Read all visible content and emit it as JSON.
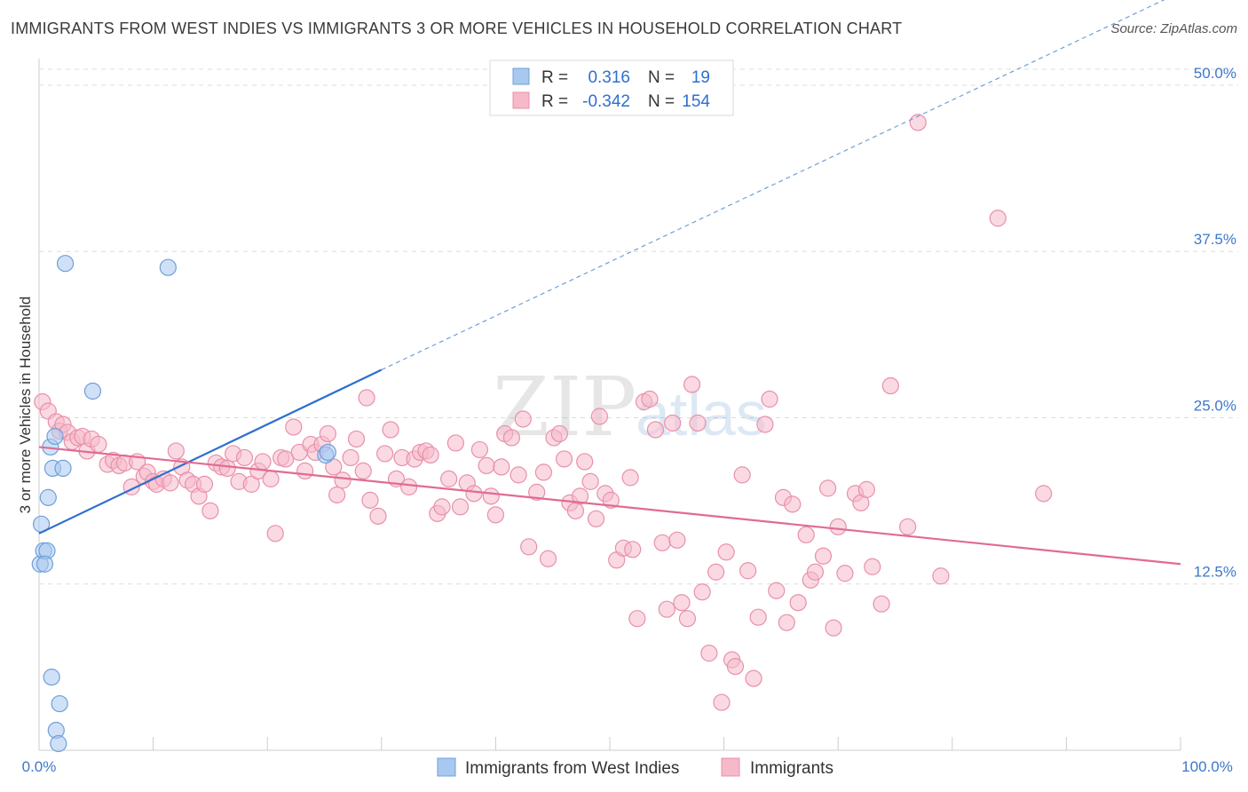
{
  "title": "IMMIGRANTS FROM WEST INDIES VS IMMIGRANTS 3 OR MORE VEHICLES IN HOUSEHOLD CORRELATION CHART",
  "source": "Source: ZipAtlas.com",
  "watermark": {
    "zip": "ZIP",
    "atlas": "atlas"
  },
  "colors": {
    "blue_fill": "#a9c8f0",
    "blue_stroke": "#6f9fd8",
    "blue_line": "#2e6fce",
    "pink_fill": "#f5b9ca",
    "pink_stroke": "#e890aa",
    "pink_line": "#e06b93",
    "tick_blue": "#3e78c9",
    "grid": "#dcdcdc"
  },
  "legend": {
    "rows": [
      {
        "r_label": "R =",
        "r_value": "0.316",
        "n_label": "N =",
        "n_value": "19"
      },
      {
        "r_label": "R =",
        "r_value": "-0.342",
        "n_label": "N =",
        "n_value": "154"
      }
    ]
  },
  "bottom_legend": [
    "Immigrants from West Indies",
    "Immigrants"
  ],
  "chart_data": {
    "type": "scatter",
    "title": "IMMIGRANTS FROM WEST INDIES VS IMMIGRANTS 3 OR MORE VEHICLES IN HOUSEHOLD CORRELATION CHART",
    "xlabel": "",
    "ylabel": "3 or more Vehicles in Household",
    "xlim": [
      0,
      100
    ],
    "ylim": [
      0,
      52
    ],
    "x_tick_labels": [
      "0.0%",
      "100.0%"
    ],
    "y_ticks": [
      12.5,
      25.0,
      37.5,
      50.0
    ],
    "y_tick_labels": [
      "12.5%",
      "25.0%",
      "37.5%",
      "50.0%"
    ],
    "grid": true,
    "legend_position": "top-center",
    "series": [
      {
        "name": "Immigrants from West Indies",
        "color": "#a9c8f0",
        "points": [
          [
            0.1,
            14.0
          ],
          [
            0.2,
            17.0
          ],
          [
            0.4,
            15.0
          ],
          [
            0.7,
            15.0
          ],
          [
            0.8,
            19.0
          ],
          [
            1.0,
            22.8
          ],
          [
            1.1,
            5.5
          ],
          [
            1.2,
            21.2
          ],
          [
            1.4,
            23.6
          ],
          [
            1.5,
            1.5
          ],
          [
            1.7,
            0.5
          ],
          [
            1.8,
            3.5
          ],
          [
            2.1,
            21.2
          ],
          [
            2.3,
            36.6
          ],
          [
            4.7,
            27.0
          ],
          [
            11.3,
            36.3
          ],
          [
            25.1,
            22.2
          ],
          [
            25.3,
            22.4
          ],
          [
            0.5,
            14.0
          ]
        ],
        "trend": {
          "x0": 0.0,
          "y0": 16.3,
          "x1": 30.0,
          "y1": 28.6,
          "dashed_to_x": 100.0,
          "dashed_to_y": 57.0
        }
      },
      {
        "name": "Immigrants",
        "color": "#f5b9ca",
        "points": [
          [
            0.3,
            26.2
          ],
          [
            0.8,
            25.5
          ],
          [
            1.5,
            24.7
          ],
          [
            1.8,
            24.0
          ],
          [
            2.1,
            24.5
          ],
          [
            2.5,
            23.9
          ],
          [
            2.9,
            23.2
          ],
          [
            3.4,
            23.5
          ],
          [
            3.8,
            23.6
          ],
          [
            4.2,
            22.5
          ],
          [
            4.6,
            23.4
          ],
          [
            5.2,
            23.0
          ],
          [
            6.0,
            21.5
          ],
          [
            6.5,
            21.8
          ],
          [
            7.0,
            21.4
          ],
          [
            7.5,
            21.6
          ],
          [
            8.1,
            19.8
          ],
          [
            8.6,
            21.7
          ],
          [
            9.2,
            20.6
          ],
          [
            9.5,
            20.9
          ],
          [
            10.0,
            20.2
          ],
          [
            10.3,
            20.0
          ],
          [
            10.9,
            20.4
          ],
          [
            11.5,
            20.1
          ],
          [
            12.0,
            22.5
          ],
          [
            12.5,
            21.3
          ],
          [
            13.0,
            20.3
          ],
          [
            13.5,
            20.0
          ],
          [
            14.0,
            19.1
          ],
          [
            14.5,
            20.0
          ],
          [
            15.0,
            18.0
          ],
          [
            15.5,
            21.6
          ],
          [
            16.0,
            21.3
          ],
          [
            16.5,
            21.2
          ],
          [
            17.0,
            22.3
          ],
          [
            17.5,
            20.2
          ],
          [
            18.0,
            22.0
          ],
          [
            18.6,
            20.0
          ],
          [
            19.2,
            21.0
          ],
          [
            19.6,
            21.7
          ],
          [
            20.3,
            20.4
          ],
          [
            20.7,
            16.3
          ],
          [
            21.2,
            22.0
          ],
          [
            21.6,
            21.9
          ],
          [
            22.3,
            24.3
          ],
          [
            22.8,
            22.4
          ],
          [
            23.3,
            21.0
          ],
          [
            23.8,
            23.0
          ],
          [
            24.2,
            22.4
          ],
          [
            24.8,
            23.0
          ],
          [
            25.3,
            23.8
          ],
          [
            25.8,
            21.3
          ],
          [
            26.1,
            19.2
          ],
          [
            26.6,
            20.3
          ],
          [
            27.3,
            22.0
          ],
          [
            27.8,
            23.4
          ],
          [
            28.4,
            21.0
          ],
          [
            28.7,
            26.5
          ],
          [
            29.0,
            18.8
          ],
          [
            29.7,
            17.6
          ],
          [
            30.3,
            22.3
          ],
          [
            30.8,
            24.1
          ],
          [
            31.3,
            20.4
          ],
          [
            31.8,
            22.0
          ],
          [
            32.4,
            19.8
          ],
          [
            32.9,
            21.9
          ],
          [
            33.4,
            22.4
          ],
          [
            33.9,
            22.5
          ],
          [
            34.3,
            22.2
          ],
          [
            34.9,
            17.8
          ],
          [
            35.3,
            18.3
          ],
          [
            35.9,
            20.4
          ],
          [
            36.5,
            23.1
          ],
          [
            36.9,
            18.3
          ],
          [
            37.5,
            20.1
          ],
          [
            38.1,
            19.3
          ],
          [
            38.6,
            22.6
          ],
          [
            39.2,
            21.4
          ],
          [
            39.6,
            19.1
          ],
          [
            40.0,
            17.7
          ],
          [
            40.5,
            21.3
          ],
          [
            40.8,
            23.8
          ],
          [
            41.4,
            23.5
          ],
          [
            42.0,
            20.7
          ],
          [
            42.4,
            24.9
          ],
          [
            42.9,
            15.3
          ],
          [
            43.6,
            19.4
          ],
          [
            44.2,
            20.9
          ],
          [
            44.6,
            14.4
          ],
          [
            45.1,
            23.5
          ],
          [
            45.6,
            23.8
          ],
          [
            46.0,
            21.9
          ],
          [
            46.5,
            18.6
          ],
          [
            47.0,
            18.0
          ],
          [
            47.4,
            19.1
          ],
          [
            47.8,
            21.7
          ],
          [
            48.3,
            20.2
          ],
          [
            48.8,
            17.4
          ],
          [
            49.1,
            25.1
          ],
          [
            49.6,
            19.3
          ],
          [
            50.1,
            18.8
          ],
          [
            50.6,
            14.3
          ],
          [
            51.2,
            15.2
          ],
          [
            51.8,
            20.5
          ],
          [
            52.0,
            15.1
          ],
          [
            52.4,
            9.9
          ],
          [
            53.0,
            26.2
          ],
          [
            53.5,
            26.4
          ],
          [
            54.0,
            24.1
          ],
          [
            54.6,
            15.6
          ],
          [
            55.0,
            10.6
          ],
          [
            55.5,
            24.6
          ],
          [
            55.9,
            15.8
          ],
          [
            56.3,
            11.1
          ],
          [
            56.8,
            9.9
          ],
          [
            57.2,
            27.5
          ],
          [
            57.7,
            24.6
          ],
          [
            58.1,
            11.9
          ],
          [
            58.7,
            7.3
          ],
          [
            59.3,
            13.4
          ],
          [
            59.8,
            3.6
          ],
          [
            60.2,
            14.9
          ],
          [
            60.7,
            6.8
          ],
          [
            61.0,
            6.3
          ],
          [
            61.6,
            20.7
          ],
          [
            62.1,
            13.5
          ],
          [
            62.6,
            5.4
          ],
          [
            63.0,
            10.0
          ],
          [
            63.6,
            24.5
          ],
          [
            64.0,
            26.4
          ],
          [
            64.6,
            12.0
          ],
          [
            65.2,
            19.0
          ],
          [
            65.5,
            9.6
          ],
          [
            66.0,
            18.5
          ],
          [
            66.5,
            11.1
          ],
          [
            67.2,
            16.2
          ],
          [
            67.6,
            12.8
          ],
          [
            68.0,
            13.4
          ],
          [
            68.7,
            14.6
          ],
          [
            69.1,
            19.7
          ],
          [
            69.6,
            9.2
          ],
          [
            70.0,
            16.8
          ],
          [
            70.6,
            13.3
          ],
          [
            71.5,
            19.3
          ],
          [
            72.0,
            18.6
          ],
          [
            72.5,
            19.6
          ],
          [
            73.0,
            13.8
          ],
          [
            73.8,
            11.0
          ],
          [
            76.1,
            16.8
          ],
          [
            79.0,
            13.1
          ],
          [
            84.0,
            40.0
          ],
          [
            88.0,
            19.3
          ],
          [
            77.0,
            47.2
          ],
          [
            74.6,
            27.4
          ]
        ],
        "trend": {
          "x0": 0.0,
          "y0": 22.8,
          "x1": 100.0,
          "y1": 14.0
        }
      }
    ]
  }
}
